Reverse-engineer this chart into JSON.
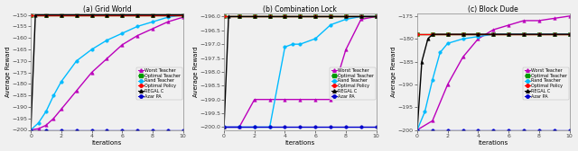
{
  "panels": [
    {
      "title": "(a) Grid World",
      "ylabel": "Average Reward",
      "xlabel": "Iterations",
      "xlim": [
        0,
        10
      ],
      "ylim": [
        -200,
        -149.5
      ],
      "yticks": [
        -200,
        -195,
        -190,
        -185,
        -180,
        -175,
        -170,
        -165,
        -160,
        -155,
        -150
      ],
      "xticks": [
        0,
        2,
        4,
        6,
        8,
        10
      ],
      "series": {
        "Worst Teacher": {
          "color": "#bb00bb",
          "marker": "^",
          "x": [
            0,
            0.5,
            1,
            1.5,
            2,
            3,
            4,
            5,
            6,
            7,
            8,
            9,
            10
          ],
          "y": [
            -200,
            -199.5,
            -198,
            -195,
            -191,
            -183,
            -175,
            -169,
            -163,
            -159,
            -156,
            -153,
            -151
          ]
        },
        "Optimal Teacher": {
          "color": "#009900",
          "marker": "s",
          "x": [
            0,
            1,
            2,
            3,
            4,
            5,
            6,
            7,
            8,
            9,
            10
          ],
          "y": [
            -150,
            -150,
            -150,
            -150,
            -150,
            -150,
            -150,
            -150,
            -150,
            -150,
            -150
          ]
        },
        "Rand Teacher": {
          "color": "#00bbff",
          "marker": "o",
          "x": [
            0,
            0.5,
            1,
            1.5,
            2,
            3,
            4,
            5,
            6,
            7,
            8,
            9,
            10
          ],
          "y": [
            -200,
            -197,
            -192,
            -185,
            -179,
            -170,
            -165,
            -161,
            -158,
            -155,
            -153,
            -151,
            -150
          ]
        },
        "Optimal Policy": {
          "color": "#ff0000",
          "marker": "o",
          "x": [
            0,
            1,
            2,
            3,
            4,
            5,
            6,
            7,
            8,
            9,
            10
          ],
          "y": [
            -150,
            -150,
            -150,
            -150,
            -150,
            -150,
            -150,
            -150,
            -150,
            -150,
            -150
          ]
        },
        "REGAL C": {
          "color": "#000000",
          "marker": "^",
          "x": [
            0,
            0.3,
            1,
            2,
            3,
            4,
            5,
            6,
            7,
            8,
            9,
            10
          ],
          "y": [
            -200,
            -150,
            -150,
            -150,
            -150,
            -150,
            -150,
            -150,
            -150,
            -150,
            -150,
            -150
          ]
        },
        "Azar PA": {
          "color": "#0000cc",
          "marker": "o",
          "x": [
            0,
            1,
            2,
            3,
            4,
            5,
            6,
            7,
            8,
            9,
            10
          ],
          "y": [
            -200,
            -200,
            -200,
            -200,
            -200,
            -200,
            -200,
            -200,
            -200,
            -200,
            -200
          ]
        }
      }
    },
    {
      "title": "(b) Combination Lock",
      "ylabel": "Average Reward",
      "xlabel": "Iterations",
      "xlim": [
        0,
        10
      ],
      "ylim": [
        -200.1,
        -195.9
      ],
      "yticks": [
        -200,
        -199.5,
        -199,
        -198.5,
        -198,
        -197.5,
        -197,
        -196.5,
        -196
      ],
      "xticks": [
        0,
        2,
        4,
        6,
        8,
        10
      ],
      "series": {
        "Worst Teacher": {
          "color": "#bb00bb",
          "marker": "^",
          "x": [
            0,
            1,
            2,
            3,
            4,
            5,
            6,
            7,
            8,
            9,
            10
          ],
          "y": [
            -200,
            -200,
            -199,
            -199,
            -199,
            -199,
            -199,
            -199,
            -197.2,
            -196.1,
            -196
          ]
        },
        "Optimal Teacher": {
          "color": "#009900",
          "marker": "s",
          "x": [
            0,
            1,
            2,
            3,
            4,
            5,
            6,
            7,
            8,
            9,
            10
          ],
          "y": [
            -196,
            -196,
            -196,
            -196,
            -196,
            -196,
            -196,
            -196,
            -196,
            -196,
            -196
          ]
        },
        "Rand Teacher": {
          "color": "#00bbff",
          "marker": "o",
          "x": [
            0,
            1,
            2,
            3,
            4,
            4.5,
            5,
            6,
            7,
            8,
            9,
            10
          ],
          "y": [
            -200,
            -200,
            -200,
            -200,
            -197.1,
            -197,
            -197,
            -196.8,
            -196.3,
            -196.1,
            -196,
            -196
          ]
        },
        "Optimal Policy": {
          "color": "#ff0000",
          "marker": "o",
          "x": [
            0,
            1,
            2,
            3,
            4,
            5,
            6,
            7,
            8,
            9,
            10
          ],
          "y": [
            -196,
            -196,
            -196,
            -196,
            -196,
            -196,
            -196,
            -196,
            -196,
            -196,
            -196
          ]
        },
        "REGAL C": {
          "color": "#000000",
          "marker": "^",
          "x": [
            0,
            0.3,
            1,
            2,
            3,
            4,
            5,
            6,
            7,
            8,
            9,
            10
          ],
          "y": [
            -200,
            -196,
            -196,
            -196,
            -196,
            -196,
            -196,
            -196,
            -196,
            -196,
            -196,
            -196
          ]
        },
        "Azar PA": {
          "color": "#0000cc",
          "marker": "o",
          "x": [
            0,
            1,
            2,
            3,
            4,
            5,
            6,
            7,
            8,
            9,
            10
          ],
          "y": [
            -200,
            -200,
            -200,
            -200,
            -200,
            -200,
            -200,
            -200,
            -200,
            -200,
            -200
          ]
        }
      }
    },
    {
      "title": "(c) Block Dude",
      "ylabel": "Average Reward",
      "xlabel": "Iterations",
      "xlim": [
        0,
        10
      ],
      "ylim": [
        -200,
        -174.5
      ],
      "yticks": [
        -200,
        -195,
        -190,
        -185,
        -180,
        -175
      ],
      "xticks": [
        0,
        2,
        4,
        6,
        8,
        10
      ],
      "series": {
        "Worst Teacher": {
          "color": "#bb00bb",
          "marker": "^",
          "x": [
            0,
            1,
            2,
            3,
            4,
            5,
            6,
            7,
            8,
            9,
            10
          ],
          "y": [
            -200,
            -198,
            -190,
            -184,
            -180,
            -178,
            -177,
            -176,
            -176,
            -175.5,
            -175
          ]
        },
        "Optimal Teacher": {
          "color": "#009900",
          "marker": "s",
          "x": [
            0,
            1,
            2,
            3,
            4,
            5,
            6,
            7,
            8,
            9,
            10
          ],
          "y": [
            -179,
            -179,
            -179,
            -179,
            -179,
            -179,
            -179,
            -179,
            -179,
            -179,
            -179
          ]
        },
        "Rand Teacher": {
          "color": "#00bbff",
          "marker": "o",
          "x": [
            0,
            0.5,
            1,
            1.5,
            2,
            3,
            4,
            5,
            6,
            7,
            8,
            9,
            10
          ],
          "y": [
            -200,
            -196,
            -189,
            -183,
            -181,
            -180,
            -179.5,
            -179,
            -179,
            -179,
            -179,
            -179,
            -179
          ]
        },
        "Optimal Policy": {
          "color": "#ff0000",
          "marker": "o",
          "x": [
            0,
            1,
            2,
            3,
            4,
            5,
            6,
            7,
            8,
            9,
            10
          ],
          "y": [
            -179,
            -179,
            -179,
            -179,
            -179,
            -179,
            -179,
            -179,
            -179,
            -179,
            -179
          ]
        },
        "REGAL C": {
          "color": "#000000",
          "marker": "^",
          "x": [
            0,
            0.3,
            0.7,
            1,
            2,
            3,
            4,
            5,
            6,
            7,
            8,
            9,
            10
          ],
          "y": [
            -200,
            -185,
            -180,
            -179,
            -179,
            -179,
            -179,
            -179,
            -179,
            -179,
            -179,
            -179,
            -179
          ]
        },
        "Azar PA": {
          "color": "#0000cc",
          "marker": "o",
          "x": [
            0,
            1,
            2,
            3,
            4,
            5,
            6,
            7,
            8,
            9,
            10
          ],
          "y": [
            -200,
            -200,
            -200,
            -200,
            -200,
            -200,
            -200,
            -200,
            -200,
            -200,
            -200
          ]
        }
      }
    }
  ],
  "legend_order": [
    "Worst Teacher",
    "Optimal Teacher",
    "Rand Teacher",
    "Optimal Policy",
    "REGAL C",
    "Azar PA"
  ],
  "legend_colors": {
    "Worst Teacher": "#bb00bb",
    "Optimal Teacher": "#009900",
    "Rand Teacher": "#00bbff",
    "Optimal Policy": "#ff0000",
    "REGAL C": "#000000",
    "Azar PA": "#0000cc"
  },
  "legend_markers": {
    "Worst Teacher": "^",
    "Optimal Teacher": "s",
    "Rand Teacher": "o",
    "Optimal Policy": "o",
    "REGAL C": "^",
    "Azar PA": "o"
  },
  "bg_color": "#f0f0f0"
}
